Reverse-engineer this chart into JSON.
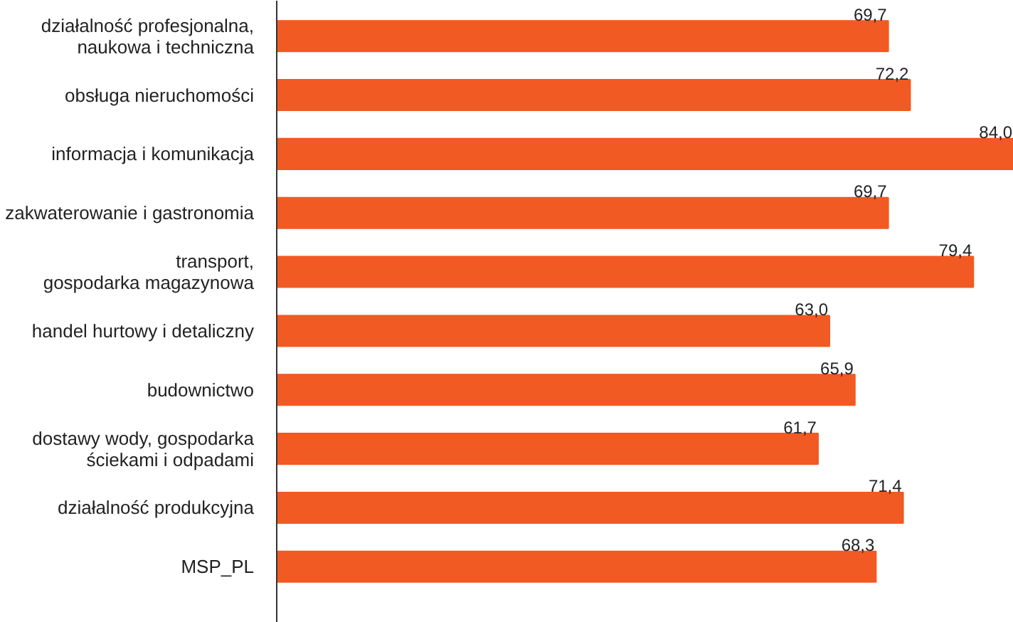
{
  "chart_data": {
    "type": "bar",
    "orientation": "horizontal",
    "grid": false,
    "tick_labels": "y",
    "categories": [
      "działalność profesjonalna,\nnaukowa i techniczna",
      "obsługa nieruchomości",
      "informacja i komunikacja",
      "zakwaterowanie i gastronomia",
      "transport,\ngospodarka magazynowa",
      "handel hurtowy i detaliczny",
      "budownictwo",
      "dostawy wody, gospodarka\nściekami i odpadami",
      "działalność produkcyjna",
      "MSP_PL"
    ],
    "values": [
      69.7,
      72.2,
      84.0,
      69.7,
      79.4,
      63.0,
      65.9,
      61.7,
      71.4,
      68.3
    ],
    "value_labels": [
      "69,7",
      "72,2",
      "84,0",
      "69,7",
      "79,4",
      "63,0",
      "65,9",
      "61,7",
      "71,4",
      "68,3"
    ],
    "color": "#f15a22"
  }
}
